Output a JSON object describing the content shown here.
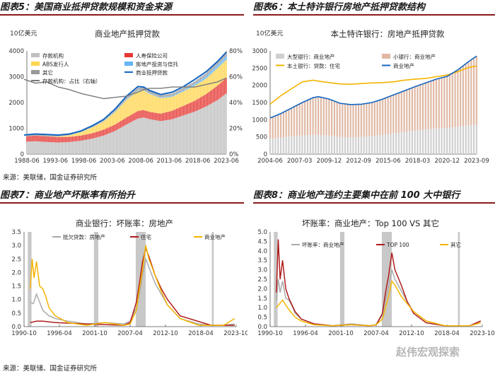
{
  "headers": {
    "fig5": "图表5：美国商业抵押贷款规模和资金来源",
    "fig6": "图表6：本土特许银行房地产抵押贷款结构",
    "fig7": "图表7：商业地产坏账率有所抬升",
    "fig8": "图表8：商业地产违约主要集中在前 100 大中银行"
  },
  "sources": {
    "top": "来源：美联储，国金证券研究所",
    "bottom": "来源：美联储、国金证券研究所"
  },
  "watermark": "赵伟宏观探索",
  "colors": {
    "deposit": "#c0c0c0",
    "insurance": "#e53935",
    "abs": "#ffd54f",
    "re_trust": "#64b5f6",
    "other": "#999999",
    "total_blue": "#1565c0",
    "share_gray": "#7a7a7a",
    "large_bank": "#cfcfcf",
    "small_bank": "#e0b8a4",
    "local_resi": "#f4b400",
    "dark_red": "#b01c1c",
    "light_gray": "#aaaaaa",
    "shade": "#c8c8c8"
  },
  "chart_data": [
    {
      "id": "fig5",
      "type": "area",
      "title": "商业地产抵押贷款",
      "ylabel": "10亿美元",
      "ylim": [
        0,
        4000
      ],
      "y2lim": [
        0,
        80
      ],
      "yticks": [
        "0",
        "1000",
        "2000",
        "3000",
        "4000"
      ],
      "y2ticks": [
        "0%",
        "20%",
        "40%",
        "60%",
        "80%"
      ],
      "xticks": [
        "1988-06",
        "1993-06",
        "1998-06",
        "2003-06",
        "2008-06",
        "2013-06",
        "2018-06",
        "2023-06"
      ],
      "legend": [
        "存款机构",
        "人寿保险公司",
        "ABS发行人",
        "房地产投资与信托",
        "其它",
        "商业抵押贷款",
        "存款机构：占比（右轴）"
      ],
      "x": [
        1988,
        1990,
        1992,
        1994,
        1996,
        1998,
        2000,
        2002,
        2004,
        2006,
        2008,
        2009,
        2010,
        2012,
        2014,
        2016,
        2018,
        2020,
        2022,
        2023.5
      ],
      "series": [
        {
          "name": "存款机构",
          "values": [
            480,
            500,
            470,
            450,
            470,
            520,
            600,
            720,
            900,
            1150,
            1380,
            1420,
            1360,
            1280,
            1350,
            1500,
            1650,
            1850,
            2100,
            2350
          ]
        },
        {
          "name": "人寿保险公司",
          "values": [
            200,
            220,
            220,
            210,
            200,
            200,
            210,
            230,
            250,
            270,
            290,
            290,
            280,
            290,
            330,
            370,
            420,
            480,
            560,
            600
          ]
        },
        {
          "name": "ABS发行人",
          "values": [
            0,
            0,
            5,
            20,
            60,
            130,
            230,
            320,
            480,
            680,
            780,
            760,
            700,
            600,
            540,
            560,
            580,
            600,
            680,
            700
          ]
        },
        {
          "name": "房地产投资与信托",
          "values": [
            0,
            0,
            0,
            0,
            5,
            10,
            15,
            20,
            25,
            30,
            30,
            25,
            25,
            30,
            40,
            50,
            70,
            100,
            130,
            140
          ]
        },
        {
          "name": "其它",
          "values": [
            40,
            40,
            40,
            40,
            40,
            45,
            50,
            60,
            70,
            80,
            90,
            90,
            85,
            80,
            85,
            90,
            100,
            110,
            130,
            140
          ]
        },
        {
          "name": "商业抵押贷款",
          "values": [
            740,
            780,
            760,
            740,
            780,
            900,
            1100,
            1350,
            1750,
            2250,
            2620,
            2600,
            2470,
            2310,
            2400,
            2620,
            2900,
            3200,
            3600,
            3950
          ]
        },
        {
          "name": "存款机构：占比（右轴）",
          "axis": "right",
          "values": [
            58,
            55,
            56,
            52,
            50,
            47,
            45,
            43,
            44,
            45,
            48,
            50,
            51,
            51,
            52,
            52,
            52,
            54,
            56,
            59
          ]
        }
      ]
    },
    {
      "id": "fig6",
      "type": "area",
      "title": "本土特许银行：房地产抵押贷款",
      "ylabel": "10亿美元",
      "ylim": [
        0,
        3000
      ],
      "yticks": [
        "0",
        "500",
        "1000",
        "1500",
        "2000",
        "2500",
        "3000"
      ],
      "xticks": [
        "2004-06",
        "2007-03",
        "2009-12",
        "2012-09",
        "2015-06",
        "2018-03",
        "2020-12",
        "2023-09"
      ],
      "legend": [
        "大型银行：商业地产",
        "小银行：商业地产",
        "本土银行：贷款：住宅",
        "商业地产"
      ],
      "x": [
        2004.5,
        2005.5,
        2006.5,
        2007.5,
        2008.5,
        2009,
        2010,
        2011,
        2012,
        2013,
        2014,
        2015,
        2016,
        2017,
        2018,
        2019,
        2020,
        2021,
        2022,
        2023,
        2023.75
      ],
      "series": [
        {
          "name": "大型银行：商业地产",
          "values": [
            450,
            480,
            520,
            540,
            560,
            560,
            540,
            500,
            490,
            500,
            520,
            560,
            600,
            640,
            680,
            720,
            750,
            760,
            800,
            840,
            860
          ]
        },
        {
          "name": "小银行：商业地产",
          "values": [
            600,
            700,
            820,
            960,
            1080,
            1110,
            1060,
            980,
            950,
            950,
            980,
            1040,
            1120,
            1200,
            1280,
            1350,
            1430,
            1500,
            1650,
            1850,
            1990
          ]
        },
        {
          "name": "本土银行：贷款：住宅",
          "values": [
            1450,
            1700,
            1900,
            2100,
            2150,
            2120,
            2080,
            2040,
            2030,
            2050,
            2070,
            2080,
            2100,
            2150,
            2180,
            2200,
            2250,
            2300,
            2400,
            2520,
            2560
          ]
        },
        {
          "name": "商业地产",
          "values": [
            1050,
            1180,
            1340,
            1500,
            1640,
            1670,
            1600,
            1480,
            1440,
            1450,
            1500,
            1600,
            1720,
            1840,
            1960,
            2070,
            2180,
            2260,
            2450,
            2690,
            2850
          ]
        }
      ]
    },
    {
      "id": "fig7",
      "type": "line",
      "title": "商业银行：坏账率：房地产",
      "ylim": [
        0,
        3.5
      ],
      "yticks": [
        "0.0",
        "0.5",
        "1.0",
        "1.5",
        "2.0",
        "2.5",
        "3.0",
        "3.5"
      ],
      "xticks": [
        "1990-10",
        "1996-04",
        "2001-10",
        "2007-04",
        "2012-10",
        "2018-04",
        "2023-10"
      ],
      "recessions": [
        [
          1990.6,
          1991.2
        ],
        [
          2001.2,
          2001.9
        ],
        [
          2007.9,
          2009.5
        ],
        [
          2020.1,
          2020.4
        ]
      ],
      "legend": [
        "抵欠贷款：房地产",
        "住宅",
        "商业地产"
      ],
      "series": [
        {
          "name": "抵欠贷款：房地产",
          "x": [
            1991,
            1991.5,
            1992,
            1992.5,
            1993,
            1994,
            1995,
            1997,
            2000,
            2003,
            2006,
            2007,
            2008,
            2008.5,
            2009,
            2009.5,
            2010,
            2011,
            2012,
            2013,
            2015,
            2018,
            2020,
            2022,
            2023.75
          ],
          "values": [
            0.9,
            0.85,
            1.2,
            0.9,
            0.6,
            0.4,
            0.3,
            0.2,
            0.1,
            0.15,
            0.1,
            0.2,
            0.7,
            1.2,
            1.9,
            2.5,
            2.2,
            1.6,
            1.2,
            0.8,
            0.3,
            0.1,
            0.05,
            0.05,
            0.1
          ]
        },
        {
          "name": "住宅",
          "x": [
            1991,
            1992,
            1993,
            1995,
            2000,
            2006,
            2007,
            2008,
            2008.5,
            2009,
            2009.5,
            2010,
            2011,
            2012,
            2013,
            2015,
            2020,
            2023.75
          ],
          "values": [
            0.15,
            0.2,
            0.2,
            0.15,
            0.1,
            0.05,
            0.15,
            0.9,
            1.6,
            2.4,
            2.9,
            2.6,
            1.9,
            1.4,
            1.0,
            0.4,
            0.05,
            0.05
          ]
        },
        {
          "name": "商业地产",
          "x": [
            1991,
            1991.3,
            1991.6,
            1992,
            1992.5,
            1993,
            1993.5,
            1994,
            1995,
            1997,
            2000,
            2003,
            2006,
            2007,
            2008,
            2008.5,
            2009,
            2009.5,
            2010,
            2011,
            2012,
            2013,
            2015,
            2018,
            2020,
            2022,
            2023.75
          ],
          "values": [
            1.4,
            2.5,
            1.8,
            2.4,
            1.5,
            1.4,
            1.1,
            0.7,
            0.4,
            0.15,
            0.05,
            0.15,
            0.05,
            0.1,
            0.6,
            1.4,
            2.1,
            3.0,
            2.5,
            1.9,
            1.3,
            0.8,
            0.3,
            0.05,
            0.05,
            0.05,
            0.3
          ]
        }
      ]
    },
    {
      "id": "fig8",
      "type": "line",
      "title": "坏账率：商业地产：Top 100 VS 其它",
      "ylim": [
        0,
        5.0
      ],
      "yticks": [
        "0.0",
        "0.5",
        "1.0",
        "1.5",
        "2.0",
        "2.5",
        "3.0",
        "3.5",
        "4.0",
        "4.5",
        "5.0"
      ],
      "xticks": [
        "1990-10",
        "1996-04",
        "2001-10",
        "2007-04",
        "2012-10",
        "2018-04",
        "2023-10"
      ],
      "recessions": [
        [
          1990.6,
          1991.2
        ],
        [
          2001.2,
          2001.9
        ],
        [
          2007.9,
          2009.5
        ],
        [
          2020.1,
          2020.4
        ]
      ],
      "legend": [
        "坏账率：商业地产",
        "TOP 100",
        "其它"
      ],
      "series": [
        {
          "name": "坏账率：商业地产",
          "x": [
            1991,
            1991.3,
            1991.6,
            1992,
            1992.5,
            1993,
            1993.5,
            1994,
            1995,
            1997,
            2000,
            2003,
            2006,
            2007,
            2008,
            2008.5,
            2009,
            2009.5,
            2010,
            2011,
            2012,
            2013,
            2015,
            2018,
            2020,
            2022,
            2023.75
          ],
          "values": [
            1.4,
            2.5,
            1.8,
            2.4,
            1.5,
            1.4,
            1.1,
            0.7,
            0.4,
            0.15,
            0.05,
            0.15,
            0.05,
            0.1,
            0.6,
            1.4,
            2.1,
            3.0,
            2.5,
            1.9,
            1.3,
            0.8,
            0.3,
            0.05,
            0.05,
            0.05,
            0.3
          ]
        },
        {
          "name": "TOP 100",
          "x": [
            1991,
            1991.3,
            1991.6,
            1992,
            1992.5,
            1993,
            1994,
            1995,
            1997,
            2000,
            2003,
            2006,
            2007,
            2008,
            2008.5,
            2009,
            2009.5,
            2010,
            2011,
            2012,
            2013,
            2015,
            2018,
            2020,
            2022,
            2023.75
          ],
          "values": [
            1.8,
            4.6,
            2.5,
            3.5,
            2.0,
            1.5,
            0.8,
            0.4,
            0.15,
            0.05,
            0.1,
            0.05,
            0.1,
            0.7,
            1.8,
            2.7,
            3.9,
            3.0,
            2.2,
            1.3,
            0.7,
            0.2,
            0.05,
            0.05,
            0.05,
            0.3
          ]
        },
        {
          "name": "其它",
          "x": [
            1991,
            1991.5,
            1992,
            1993,
            1994,
            1995,
            1997,
            2000,
            2003,
            2006,
            2007,
            2008,
            2008.5,
            2009,
            2009.5,
            2010,
            2011,
            2012,
            2013,
            2015,
            2018,
            2020,
            2022,
            2023.75
          ],
          "values": [
            1.0,
            1.2,
            1.4,
            0.9,
            0.5,
            0.3,
            0.1,
            0.05,
            0.1,
            0.05,
            0.1,
            0.4,
            1.0,
            1.6,
            2.4,
            2.2,
            1.6,
            1.2,
            0.8,
            0.3,
            0.05,
            0.05,
            0.05,
            0.2
          ]
        }
      ]
    }
  ]
}
